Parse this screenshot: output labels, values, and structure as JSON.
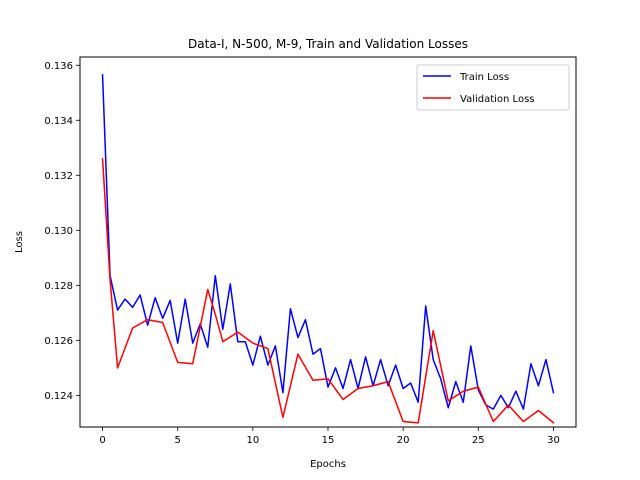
{
  "chart_data": {
    "type": "line",
    "title": "Data-I, N-500, M-9, Train and Validation Losses",
    "xlabel": "Epochs",
    "ylabel": "Loss",
    "xlim": [
      -1.5,
      31.5
    ],
    "ylim": [
      0.12285,
      0.1363
    ],
    "xticks": [
      0,
      5,
      10,
      15,
      20,
      25,
      30
    ],
    "yticks": [
      0.124,
      0.126,
      0.128,
      0.13,
      0.132,
      0.134,
      0.136
    ],
    "ytick_labels": [
      "0.124",
      "0.126",
      "0.128",
      "0.130",
      "0.132",
      "0.134",
      "0.136"
    ],
    "grid": false,
    "legend_position": "top-right",
    "series": [
      {
        "name": "Train Loss",
        "color": "#0000ff",
        "x": [
          0,
          0.5,
          1,
          1.5,
          2,
          2.5,
          3,
          3.5,
          4,
          4.5,
          5,
          5.5,
          6,
          6.5,
          7,
          7.5,
          8,
          8.5,
          9,
          9.5,
          10,
          10.5,
          11,
          11.5,
          12,
          12.5,
          13,
          13.5,
          14,
          14.5,
          15,
          15.5,
          16,
          16.5,
          17,
          17.5,
          18,
          18.5,
          19,
          19.5,
          20,
          20.5,
          21,
          21.5,
          22,
          22.5,
          23,
          23.5,
          24,
          24.5,
          25,
          25.5,
          26,
          26.5,
          27,
          27.5,
          28,
          28.5,
          29,
          29.5,
          30
        ],
        "values": [
          0.13565,
          0.12835,
          0.1271,
          0.1275,
          0.1272,
          0.12765,
          0.12655,
          0.12755,
          0.1268,
          0.12745,
          0.1259,
          0.1275,
          0.1259,
          0.1266,
          0.12575,
          0.12835,
          0.1264,
          0.12805,
          0.12595,
          0.12595,
          0.1251,
          0.12615,
          0.1251,
          0.1258,
          0.1241,
          0.12715,
          0.1261,
          0.12675,
          0.1255,
          0.1257,
          0.1243,
          0.125,
          0.12425,
          0.1253,
          0.12425,
          0.1254,
          0.12435,
          0.1253,
          0.12435,
          0.1251,
          0.12425,
          0.12445,
          0.12375,
          0.12725,
          0.1253,
          0.1246,
          0.12355,
          0.1245,
          0.12375,
          0.1258,
          0.1242,
          0.12365,
          0.1235,
          0.124,
          0.12355,
          0.12415,
          0.1235,
          0.12515,
          0.12435,
          0.1253,
          0.1241
        ]
      },
      {
        "name": "Validation Loss",
        "color": "#ff0000",
        "x": [
          0,
          0.5,
          1,
          2,
          3,
          4,
          5,
          6,
          7,
          7.5,
          8,
          9,
          10,
          11,
          12,
          13,
          14,
          15,
          16,
          17,
          18,
          19,
          20,
          21,
          22,
          23,
          24,
          25,
          26,
          27,
          28,
          29,
          30
        ],
        "values": [
          0.1326,
          0.1282,
          0.125,
          0.12645,
          0.12675,
          0.12665,
          0.1252,
          0.12515,
          0.12785,
          0.12695,
          0.12595,
          0.1263,
          0.1259,
          0.1257,
          0.1232,
          0.1255,
          0.12455,
          0.1246,
          0.12385,
          0.12425,
          0.12435,
          0.1245,
          0.12305,
          0.123,
          0.12635,
          0.1238,
          0.12415,
          0.1243,
          0.12305,
          0.12365,
          0.12305,
          0.12345,
          0.123
        ]
      }
    ]
  }
}
